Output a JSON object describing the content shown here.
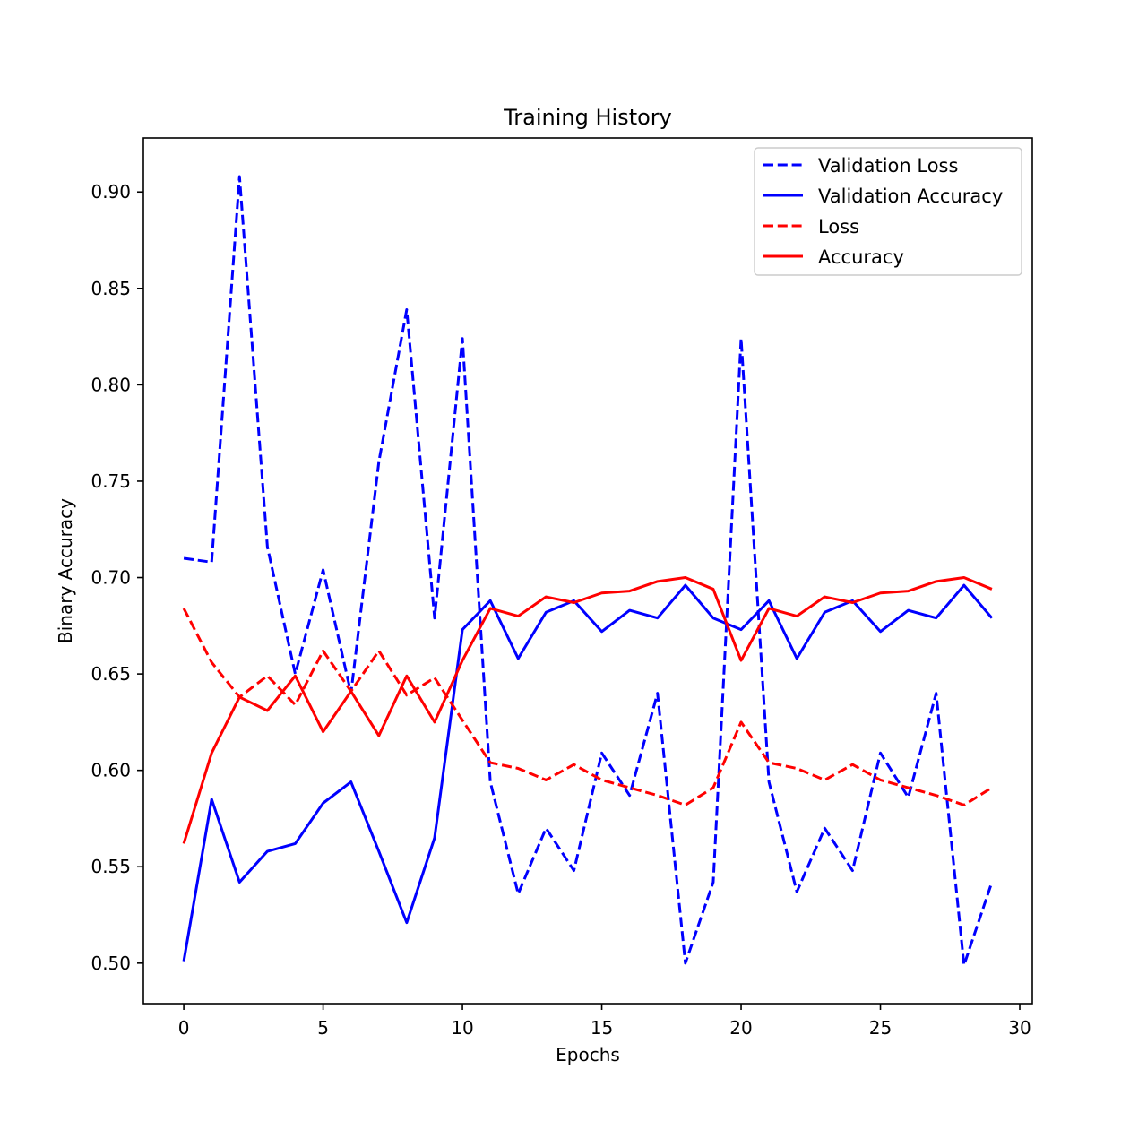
{
  "chart_data": {
    "type": "line",
    "title": "Training History",
    "xlabel": "Epochs",
    "ylabel": "Binary Accuracy",
    "xlim": [
      -1.45,
      30.45
    ],
    "ylim": [
      0.479,
      0.928
    ],
    "xticks": [
      0,
      5,
      10,
      15,
      20,
      25,
      30
    ],
    "yticks": [
      "0.50",
      "0.55",
      "0.60",
      "0.65",
      "0.70",
      "0.75",
      "0.80",
      "0.85",
      "0.90"
    ],
    "grid": false,
    "legend_position": "upper right",
    "x": [
      0,
      1,
      2,
      3,
      4,
      5,
      6,
      7,
      8,
      9,
      10,
      11,
      12,
      13,
      14,
      15,
      16,
      17,
      18,
      19,
      20,
      21,
      22,
      23,
      24,
      25,
      26,
      27,
      28,
      29
    ],
    "series": [
      {
        "name": "Validation Loss",
        "color": "#0000ff",
        "style": "dashed",
        "values": [
          0.71,
          0.708,
          0.908,
          0.716,
          0.65,
          0.704,
          0.64,
          0.76,
          0.839,
          0.679,
          0.824,
          0.594,
          0.536,
          0.57,
          0.548,
          0.609,
          0.587,
          0.64,
          0.5,
          0.542,
          0.824,
          0.594,
          0.537,
          0.57,
          0.548,
          0.609,
          0.586,
          0.64,
          0.499,
          0.542
        ]
      },
      {
        "name": "Validation Accuracy",
        "color": "#0000ff",
        "style": "solid",
        "values": [
          0.501,
          0.585,
          0.542,
          0.558,
          0.562,
          0.583,
          0.594,
          0.558,
          0.521,
          0.565,
          0.673,
          0.688,
          0.658,
          0.682,
          0.688,
          0.672,
          0.683,
          0.679,
          0.696,
          0.679,
          0.673,
          0.688,
          0.658,
          0.682,
          0.688,
          0.672,
          0.683,
          0.679,
          0.696,
          0.679
        ]
      },
      {
        "name": "Loss",
        "color": "#ff0000",
        "style": "dashed",
        "values": [
          0.684,
          0.656,
          0.638,
          0.649,
          0.634,
          0.662,
          0.641,
          0.662,
          0.639,
          0.648,
          0.626,
          0.604,
          0.601,
          0.595,
          0.603,
          0.595,
          0.591,
          0.587,
          0.582,
          0.591,
          0.625,
          0.604,
          0.601,
          0.595,
          0.603,
          0.595,
          0.591,
          0.587,
          0.582,
          0.591
        ]
      },
      {
        "name": "Accuracy",
        "color": "#ff0000",
        "style": "solid",
        "values": [
          0.562,
          0.609,
          0.638,
          0.631,
          0.649,
          0.62,
          0.641,
          0.618,
          0.649,
          0.625,
          0.657,
          0.684,
          0.68,
          0.69,
          0.687,
          0.692,
          0.693,
          0.698,
          0.7,
          0.694,
          0.657,
          0.684,
          0.68,
          0.69,
          0.687,
          0.692,
          0.693,
          0.698,
          0.7,
          0.694
        ]
      }
    ]
  }
}
